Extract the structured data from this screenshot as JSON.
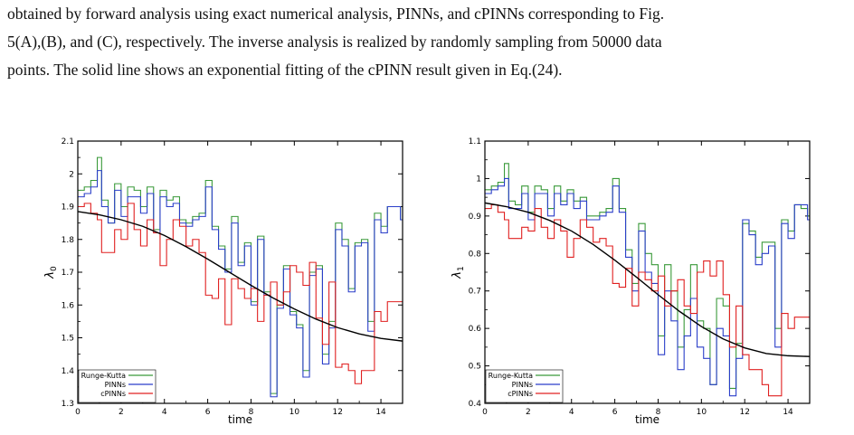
{
  "caption": {
    "lines": [
      "obtained by forward analysis using exact numerical analysis, PINNs, and cPINNs corresponding to Fig.",
      "5(A),(B), and (C), respectively.  The inverse analysis is realized by randomly sampling from 50000 data",
      "points. The solid line shows an exponential fitting of the cPINN result given in Eq.(24)."
    ]
  },
  "chart_data": [
    {
      "type": "line",
      "title": "",
      "xlabel": "time",
      "ylabel": "λ0",
      "ylabel_main": "λ",
      "ylabel_sub": "0",
      "xlim": [
        0,
        15
      ],
      "ylim": [
        1.3,
        2.1
      ],
      "xticks": [
        "0",
        "2",
        "4",
        "6",
        "8",
        "10",
        "12",
        "14"
      ],
      "yticks": [
        "1.3",
        "1.4",
        "1.5",
        "1.6",
        "1.7",
        "1.8",
        "1.9",
        "2",
        "2.1"
      ],
      "legend_position": "bottom-left",
      "series": [
        {
          "name": "Runge-Kutta",
          "color": "#3a9a3a",
          "style": "step",
          "x": [
            0,
            0.3,
            0.6,
            0.9,
            1.1,
            1.4,
            1.7,
            2.0,
            2.3,
            2.6,
            2.9,
            3.2,
            3.5,
            3.8,
            4.1,
            4.4,
            4.7,
            5.0,
            5.3,
            5.6,
            5.9,
            6.2,
            6.5,
            6.8,
            7.1,
            7.4,
            7.7,
            8.0,
            8.3,
            8.6,
            8.9,
            9.2,
            9.5,
            9.8,
            10.1,
            10.4,
            10.7,
            11.0,
            11.3,
            11.6,
            11.9,
            12.2,
            12.5,
            12.8,
            13.1,
            13.4,
            13.7,
            14.0,
            14.3,
            14.6,
            14.9
          ],
          "y": [
            1.95,
            1.96,
            1.98,
            2.05,
            1.92,
            1.85,
            1.97,
            1.9,
            1.96,
            1.95,
            1.9,
            1.96,
            1.83,
            1.95,
            1.92,
            1.93,
            1.86,
            1.85,
            1.87,
            1.88,
            1.98,
            1.84,
            1.78,
            1.71,
            1.87,
            1.73,
            1.79,
            1.61,
            1.81,
            1.64,
            1.33,
            1.6,
            1.72,
            1.58,
            1.54,
            1.4,
            1.7,
            1.72,
            1.45,
            1.55,
            1.85,
            1.8,
            1.65,
            1.79,
            1.8,
            1.55,
            1.88,
            1.84,
            1.9,
            1.9,
            1.86
          ]
        },
        {
          "name": "PINNs",
          "color": "#2b3fc9",
          "style": "step",
          "x": [
            0,
            0.3,
            0.6,
            0.9,
            1.1,
            1.4,
            1.7,
            2.0,
            2.3,
            2.6,
            2.9,
            3.2,
            3.5,
            3.8,
            4.1,
            4.4,
            4.7,
            5.0,
            5.3,
            5.6,
            5.9,
            6.2,
            6.5,
            6.8,
            7.1,
            7.4,
            7.7,
            8.0,
            8.3,
            8.6,
            8.9,
            9.2,
            9.5,
            9.8,
            10.1,
            10.4,
            10.7,
            11.0,
            11.3,
            11.6,
            11.9,
            12.2,
            12.5,
            12.8,
            13.1,
            13.4,
            13.7,
            14.0,
            14.3,
            14.6,
            14.9
          ],
          "y": [
            1.93,
            1.94,
            1.96,
            2.01,
            1.9,
            1.85,
            1.95,
            1.87,
            1.93,
            1.93,
            1.88,
            1.94,
            1.82,
            1.93,
            1.9,
            1.91,
            1.85,
            1.84,
            1.86,
            1.87,
            1.96,
            1.83,
            1.77,
            1.7,
            1.85,
            1.72,
            1.78,
            1.6,
            1.8,
            1.63,
            1.32,
            1.59,
            1.71,
            1.57,
            1.53,
            1.38,
            1.69,
            1.71,
            1.42,
            1.53,
            1.83,
            1.78,
            1.64,
            1.78,
            1.79,
            1.52,
            1.86,
            1.82,
            1.9,
            1.9,
            1.86
          ]
        },
        {
          "name": "cPINNs",
          "color": "#e02020",
          "style": "step",
          "x": [
            0,
            0.3,
            0.6,
            0.9,
            1.1,
            1.4,
            1.7,
            2.0,
            2.3,
            2.6,
            2.9,
            3.2,
            3.5,
            3.8,
            4.1,
            4.4,
            4.7,
            5.0,
            5.3,
            5.6,
            5.9,
            6.2,
            6.5,
            6.8,
            7.1,
            7.4,
            7.7,
            8.0,
            8.3,
            8.6,
            8.9,
            9.2,
            9.5,
            9.8,
            10.1,
            10.4,
            10.7,
            11.0,
            11.3,
            11.6,
            11.9,
            12.2,
            12.5,
            12.8,
            13.1,
            13.4,
            13.7,
            14.0,
            14.3,
            14.6,
            14.9
          ],
          "y": [
            1.9,
            1.91,
            1.88,
            1.86,
            1.76,
            1.76,
            1.83,
            1.8,
            1.91,
            1.83,
            1.78,
            1.86,
            1.82,
            1.72,
            1.8,
            1.86,
            1.84,
            1.78,
            1.8,
            1.76,
            1.63,
            1.62,
            1.68,
            1.54,
            1.68,
            1.65,
            1.62,
            1.65,
            1.55,
            1.63,
            1.67,
            1.6,
            1.64,
            1.72,
            1.7,
            1.66,
            1.73,
            1.56,
            1.48,
            1.67,
            1.41,
            1.42,
            1.4,
            1.36,
            1.4,
            1.4,
            1.58,
            1.55,
            1.61,
            1.61,
            1.61
          ]
        },
        {
          "name": "",
          "color": "#000000",
          "style": "smooth",
          "x": [
            0,
            1,
            2,
            3,
            4,
            5,
            6,
            7,
            8,
            9,
            10,
            11,
            12,
            13,
            14,
            15
          ],
          "y": [
            1.885,
            1.875,
            1.86,
            1.84,
            1.812,
            1.778,
            1.74,
            1.7,
            1.66,
            1.622,
            1.588,
            1.557,
            1.531,
            1.512,
            1.498,
            1.49
          ]
        }
      ]
    },
    {
      "type": "line",
      "title": "",
      "xlabel": "time",
      "ylabel": "λ1",
      "ylabel_main": "λ",
      "ylabel_sub": "1",
      "xlim": [
        0,
        15
      ],
      "ylim": [
        0.4,
        1.1
      ],
      "xticks": [
        "0",
        "2",
        "4",
        "6",
        "8",
        "10",
        "12",
        "14"
      ],
      "yticks": [
        "0.4",
        "0.5",
        "0.6",
        "0.7",
        "0.8",
        "0.9",
        "1",
        "1.1"
      ],
      "legend_position": "bottom-left",
      "series": [
        {
          "name": "Runge-Kutta",
          "color": "#3a9a3a",
          "style": "step",
          "x": [
            0,
            0.3,
            0.6,
            0.9,
            1.1,
            1.4,
            1.7,
            2.0,
            2.3,
            2.6,
            2.9,
            3.2,
            3.5,
            3.8,
            4.1,
            4.4,
            4.7,
            5.0,
            5.3,
            5.6,
            5.9,
            6.2,
            6.5,
            6.8,
            7.1,
            7.4,
            7.7,
            8.0,
            8.3,
            8.6,
            8.9,
            9.2,
            9.5,
            9.8,
            10.1,
            10.4,
            10.7,
            11.0,
            11.3,
            11.6,
            11.9,
            12.2,
            12.5,
            12.8,
            13.1,
            13.4,
            13.7,
            14.0,
            14.3,
            14.6,
            14.9
          ],
          "y": [
            0.97,
            0.98,
            0.99,
            1.04,
            0.94,
            0.93,
            0.98,
            0.91,
            0.98,
            0.97,
            0.92,
            0.98,
            0.94,
            0.97,
            0.94,
            0.95,
            0.9,
            0.9,
            0.91,
            0.92,
            1.0,
            0.92,
            0.81,
            0.72,
            0.88,
            0.8,
            0.77,
            0.58,
            0.77,
            0.7,
            0.55,
            0.65,
            0.77,
            0.62,
            0.6,
            0.45,
            0.68,
            0.66,
            0.44,
            0.56,
            0.88,
            0.86,
            0.79,
            0.83,
            0.83,
            0.6,
            0.89,
            0.86,
            0.93,
            0.92,
            0.9
          ]
        },
        {
          "name": "PINNs",
          "color": "#2b3fc9",
          "style": "step",
          "x": [
            0,
            0.3,
            0.6,
            0.9,
            1.1,
            1.4,
            1.7,
            2.0,
            2.3,
            2.6,
            2.9,
            3.2,
            3.5,
            3.8,
            4.1,
            4.4,
            4.7,
            5.0,
            5.3,
            5.6,
            5.9,
            6.2,
            6.5,
            6.8,
            7.1,
            7.4,
            7.7,
            8.0,
            8.3,
            8.6,
            8.9,
            9.2,
            9.5,
            9.8,
            10.1,
            10.4,
            10.7,
            11.0,
            11.3,
            11.6,
            11.9,
            12.2,
            12.5,
            12.8,
            13.1,
            13.4,
            13.7,
            14.0,
            14.3,
            14.6,
            14.9
          ],
          "y": [
            0.96,
            0.97,
            0.98,
            1.0,
            0.92,
            0.92,
            0.96,
            0.89,
            0.96,
            0.96,
            0.9,
            0.96,
            0.93,
            0.96,
            0.92,
            0.94,
            0.89,
            0.89,
            0.9,
            0.91,
            0.98,
            0.91,
            0.79,
            0.7,
            0.86,
            0.75,
            0.72,
            0.53,
            0.7,
            0.62,
            0.49,
            0.58,
            0.68,
            0.55,
            0.52,
            0.45,
            0.6,
            0.58,
            0.42,
            0.52,
            0.89,
            0.85,
            0.77,
            0.8,
            0.82,
            0.55,
            0.88,
            0.84,
            0.93,
            0.93,
            0.89
          ]
        },
        {
          "name": "cPINNs",
          "color": "#e02020",
          "style": "step",
          "x": [
            0,
            0.3,
            0.6,
            0.9,
            1.1,
            1.4,
            1.7,
            2.0,
            2.3,
            2.6,
            2.9,
            3.2,
            3.5,
            3.8,
            4.1,
            4.4,
            4.7,
            5.0,
            5.3,
            5.6,
            5.9,
            6.2,
            6.5,
            6.8,
            7.1,
            7.4,
            7.7,
            8.0,
            8.3,
            8.6,
            8.9,
            9.2,
            9.5,
            9.8,
            10.1,
            10.4,
            10.7,
            11.0,
            11.3,
            11.6,
            11.9,
            12.2,
            12.5,
            12.8,
            13.1,
            13.4,
            13.7,
            14.0,
            14.3,
            14.6,
            14.9
          ],
          "y": [
            0.92,
            0.93,
            0.91,
            0.89,
            0.84,
            0.84,
            0.87,
            0.86,
            0.92,
            0.87,
            0.84,
            0.89,
            0.86,
            0.79,
            0.84,
            0.89,
            0.87,
            0.83,
            0.84,
            0.82,
            0.72,
            0.71,
            0.76,
            0.66,
            0.75,
            0.73,
            0.7,
            0.74,
            0.66,
            0.7,
            0.73,
            0.66,
            0.64,
            0.75,
            0.78,
            0.74,
            0.78,
            0.69,
            0.55,
            0.66,
            0.53,
            0.49,
            0.49,
            0.45,
            0.42,
            0.42,
            0.64,
            0.6,
            0.63,
            0.63,
            0.63
          ]
        },
        {
          "name": "",
          "color": "#000000",
          "style": "smooth",
          "x": [
            0,
            1,
            2,
            3,
            4,
            5,
            6,
            7,
            8,
            9,
            10,
            11,
            12,
            13,
            14,
            15
          ],
          "y": [
            0.935,
            0.925,
            0.91,
            0.888,
            0.86,
            0.824,
            0.782,
            0.737,
            0.69,
            0.645,
            0.605,
            0.572,
            0.548,
            0.533,
            0.527,
            0.525
          ]
        }
      ]
    }
  ]
}
